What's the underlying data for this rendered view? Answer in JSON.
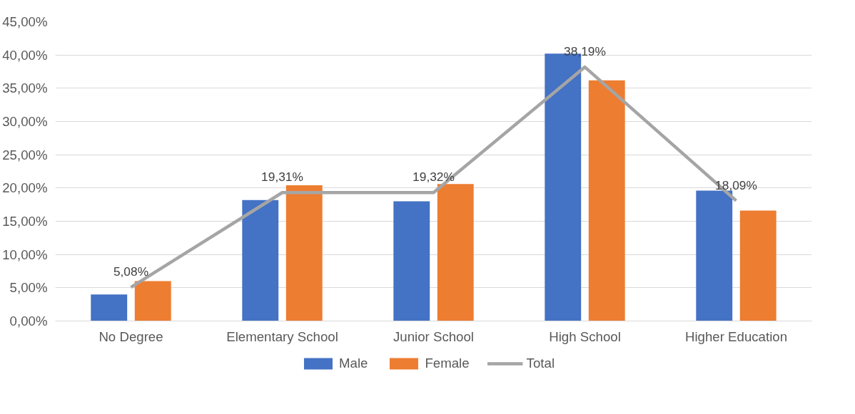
{
  "chart_data": {
    "type": "bar",
    "categories": [
      "No Degree",
      "Elementary School",
      "Junior School",
      "High School",
      "Higher Education"
    ],
    "series": [
      {
        "name": "Male",
        "color": "#4472c4",
        "values": [
          4.0,
          18.2,
          18.0,
          40.2,
          19.6
        ]
      },
      {
        "name": "Female",
        "color": "#ed7d31",
        "values": [
          6.0,
          20.4,
          20.6,
          36.2,
          16.6
        ]
      },
      {
        "name": "Total",
        "type": "line",
        "color": "#a5a5a5",
        "values": [
          5.08,
          19.31,
          19.32,
          38.19,
          18.09
        ],
        "value_labels": [
          "5,08%",
          "19,31%",
          "19,32%",
          "38,19%",
          "18,09%"
        ]
      }
    ],
    "ylim": [
      0,
      45
    ],
    "yticks": [
      {
        "value": 0,
        "label": "0,00%"
      },
      {
        "value": 5,
        "label": "5,00%"
      },
      {
        "value": 10,
        "label": "10,00%"
      },
      {
        "value": 15,
        "label": "15,00%"
      },
      {
        "value": 20,
        "label": "20,00%"
      },
      {
        "value": 25,
        "label": "25,00%"
      },
      {
        "value": 30,
        "label": "30,00%"
      },
      {
        "value": 35,
        "label": "35,00%"
      },
      {
        "value": 40,
        "label": "40,00%"
      },
      {
        "value": 45,
        "label": "45,00%"
      }
    ],
    "grid": "y",
    "legend": "bottom",
    "line_style": "solid",
    "marker": "none"
  }
}
